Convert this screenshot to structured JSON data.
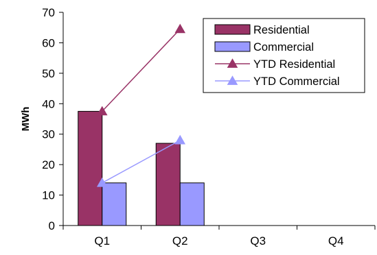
{
  "chart_data": {
    "type": "bar",
    "categories": [
      "Q1",
      "Q2",
      "Q3",
      "Q4"
    ],
    "series": [
      {
        "name": "Residential",
        "kind": "bar",
        "values": [
          37.5,
          27,
          null,
          null
        ]
      },
      {
        "name": "Commercial",
        "kind": "bar",
        "values": [
          14,
          14,
          null,
          null
        ]
      },
      {
        "name": "YTD Residential",
        "kind": "line",
        "values": [
          37.5,
          64.5,
          null,
          null
        ]
      },
      {
        "name": "YTD Commercial",
        "kind": "line",
        "values": [
          14,
          28,
          null,
          null
        ]
      }
    ],
    "title": "",
    "xlabel": "",
    "ylabel": "MWh",
    "ylim": [
      0,
      70
    ],
    "yticks": [
      0,
      10,
      20,
      30,
      40,
      50,
      60,
      70
    ],
    "grid": false,
    "legend": "top-right",
    "colors": {
      "Residential": "#993366",
      "Commercial": "#9999ff",
      "YTD Residential": "#993366",
      "YTD Commercial": "#9999ff"
    }
  }
}
